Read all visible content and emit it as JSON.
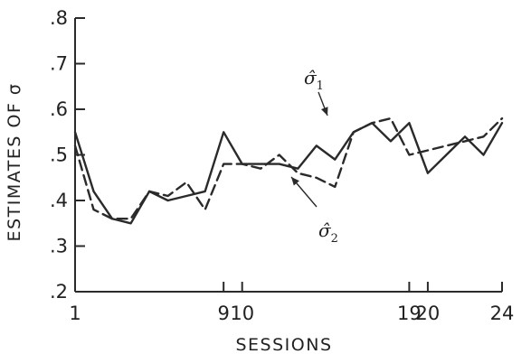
{
  "chart_data": {
    "type": "line",
    "title": "",
    "xlabel": "SESSIONS",
    "ylabel": "ESTIMATES OF σ",
    "xlim": [
      1,
      24
    ],
    "ylim": [
      0.2,
      0.8
    ],
    "xticks": [
      1,
      9,
      10,
      19,
      20,
      24
    ],
    "xtick_labels": [
      "1",
      "9",
      "10",
      "19",
      "20",
      "24"
    ],
    "yticks": [
      0.2,
      0.3,
      0.4,
      0.5,
      0.6,
      0.7,
      0.8
    ],
    "ytick_labels": [
      ".2",
      ".3",
      ".4",
      ".5",
      ".6",
      ".7",
      ".8"
    ],
    "grid": false,
    "legend": "none",
    "series": [
      {
        "label_glyph": "σ̂",
        "label_sub": "1",
        "style": "solid",
        "x": [
          1,
          2,
          3,
          4,
          5,
          6,
          7,
          8,
          9,
          10,
          11,
          12,
          13,
          14,
          15,
          16,
          17,
          18,
          19,
          20,
          21,
          22,
          23,
          24
        ],
        "y": [
          0.55,
          0.42,
          0.36,
          0.35,
          0.42,
          0.4,
          0.41,
          0.42,
          0.55,
          0.48,
          0.48,
          0.48,
          0.47,
          0.52,
          0.49,
          0.55,
          0.57,
          0.53,
          0.57,
          0.46,
          0.5,
          0.54,
          0.5,
          0.57
        ]
      },
      {
        "label_glyph": "σ̂",
        "label_sub": "2",
        "style": "dashed",
        "x": [
          1,
          2,
          3,
          4,
          5,
          6,
          7,
          8,
          9,
          10,
          11,
          12,
          13,
          14,
          15,
          16,
          17,
          18,
          19,
          20,
          21,
          22,
          23,
          24
        ],
        "y": [
          0.52,
          0.38,
          0.36,
          0.36,
          0.42,
          0.41,
          0.44,
          0.38,
          0.48,
          0.48,
          0.47,
          0.5,
          0.46,
          0.45,
          0.43,
          0.55,
          0.57,
          0.58,
          0.5,
          0.51,
          0.52,
          0.53,
          0.54,
          0.58
        ]
      }
    ],
    "annotations": [
      {
        "series": 0,
        "glyph": "σ̂",
        "sub": "1"
      },
      {
        "series": 1,
        "glyph": "σ̂",
        "sub": "2"
      }
    ]
  }
}
